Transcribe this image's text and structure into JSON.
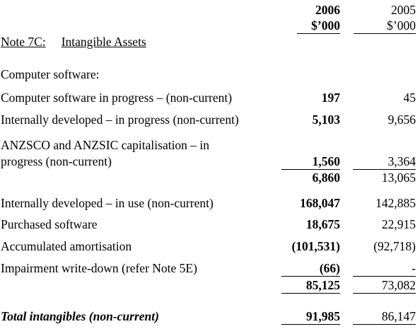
{
  "header": {
    "col1_year": "2006",
    "col1_unit": "$’000",
    "col2_year": "2005",
    "col2_unit": "$’000"
  },
  "note": {
    "number": "Note 7C:",
    "title": "Intangible Assets"
  },
  "section": "Computer software:",
  "rows": [
    {
      "label": "Computer software in progress – (non-current)",
      "y2006": "197",
      "y2005": "45"
    },
    {
      "label": "Internally developed – in progress (non-current)",
      "y2006": "5,103",
      "y2005": "9,656"
    },
    {
      "label_line1": "ANZSCO and ANZSIC capitalisation – in",
      "label_line2": "progress (non-current)",
      "y2006": "1,560",
      "y2005": "3,364"
    },
    {
      "label": "",
      "y2006": "6,860",
      "y2005": "13,065"
    },
    {
      "label": "Internally developed – in use (non-current)",
      "y2006": "168,047",
      "y2005": "142,885"
    },
    {
      "label": "Purchased software",
      "y2006": "18,675",
      "y2005": "22,915"
    },
    {
      "label": "Accumulated amortisation",
      "y2006": "(101,531)",
      "y2005": "(92,718)"
    },
    {
      "label": "Impairment write-down (refer Note 5E)",
      "y2006": "(66)",
      "y2005": "-"
    },
    {
      "label": "",
      "y2006": "85,125",
      "y2005": "73,082"
    }
  ],
  "total": {
    "label": "Total intangibles (non-current)",
    "y2006": "91,985",
    "y2005": "86,147"
  }
}
